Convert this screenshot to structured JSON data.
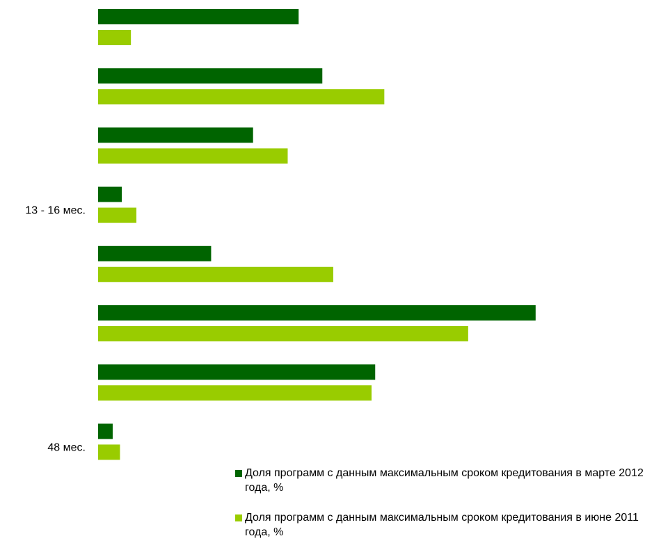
{
  "chart_data": {
    "type": "bar",
    "orientation": "horizontal",
    "categories": [
      "",
      "",
      "",
      "13 - 16 мес.",
      "",
      "",
      "",
      "48 мес."
    ],
    "series": [
      {
        "name": "Доля программ с данным максимальным сроком кредитования в марте 2012 года, %",
        "color": "#006400",
        "values": [
          11.0,
          12.3,
          8.5,
          1.3,
          6.2,
          24.0,
          15.2,
          0.8
        ]
      },
      {
        "name": "Доля программ с данным максимальным сроком кредитования в июне 2011 года, %",
        "color": "#99cc00",
        "values": [
          1.8,
          15.7,
          10.4,
          2.1,
          12.9,
          20.3,
          15.0,
          1.2
        ]
      }
    ],
    "xlim": [
      0,
      25
    ],
    "grid": false,
    "legend_position": "bottom-right"
  }
}
